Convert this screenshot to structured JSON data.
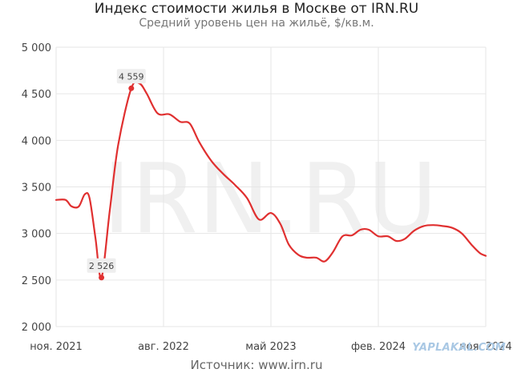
{
  "title": "Индекс стоимости жилья в Москве от IRN.RU",
  "subtitle": "Средний уровень цен на жильё, $/кв.м.",
  "source": "Источник: www.irn.ru",
  "watermark": "IRN.RU",
  "credit": "YAPLAKAL.COM",
  "colors": {
    "line": "#e03030",
    "grid": "#e6e6e6",
    "label_bg": "#eeeeee"
  },
  "chart_data": {
    "type": "line",
    "xlabel": "",
    "ylabel": "",
    "ylim": [
      2000,
      5000
    ],
    "yticks": [
      2000,
      2500,
      3000,
      3500,
      4000,
      4500,
      5000
    ],
    "ytick_labels": [
      "2 000",
      "2 500",
      "3 000",
      "3 500",
      "4 000",
      "4 500",
      "5 000"
    ],
    "xticks": [
      {
        "t": 0,
        "label": "ноя. 2021"
      },
      {
        "t": 9,
        "label": "авг. 2022"
      },
      {
        "t": 18,
        "label": "май 2023"
      },
      {
        "t": 27,
        "label": "фев. 2024"
      },
      {
        "t": 36,
        "label": "ноя. 2024"
      }
    ],
    "grid": true,
    "series": [
      {
        "points": [
          [
            0.0,
            3360
          ],
          [
            0.8,
            3360
          ],
          [
            1.3,
            3290
          ],
          [
            1.9,
            3290
          ],
          [
            2.4,
            3420
          ],
          [
            2.8,
            3380
          ],
          [
            3.3,
            2950
          ],
          [
            3.8,
            2526
          ],
          [
            4.5,
            3250
          ],
          [
            5.2,
            3950
          ],
          [
            6.3,
            4559
          ],
          [
            7.0,
            4610
          ],
          [
            7.6,
            4500
          ],
          [
            8.5,
            4290
          ],
          [
            9.5,
            4280
          ],
          [
            10.4,
            4200
          ],
          [
            11.2,
            4180
          ],
          [
            12.0,
            3980
          ],
          [
            13.0,
            3780
          ],
          [
            14.0,
            3640
          ],
          [
            15.0,
            3520
          ],
          [
            16.0,
            3380
          ],
          [
            17.0,
            3150
          ],
          [
            18.0,
            3220
          ],
          [
            18.8,
            3100
          ],
          [
            19.5,
            2880
          ],
          [
            20.3,
            2770
          ],
          [
            21.0,
            2740
          ],
          [
            21.8,
            2740
          ],
          [
            22.5,
            2700
          ],
          [
            23.2,
            2800
          ],
          [
            24.0,
            2970
          ],
          [
            24.8,
            2980
          ],
          [
            25.5,
            3040
          ],
          [
            26.2,
            3040
          ],
          [
            27.0,
            2970
          ],
          [
            27.8,
            2970
          ],
          [
            28.5,
            2920
          ],
          [
            29.2,
            2940
          ],
          [
            30.0,
            3030
          ],
          [
            30.8,
            3080
          ],
          [
            31.6,
            3090
          ],
          [
            32.4,
            3080
          ],
          [
            33.2,
            3060
          ],
          [
            34.0,
            3000
          ],
          [
            34.8,
            2880
          ],
          [
            35.5,
            2790
          ],
          [
            36.0,
            2760
          ]
        ]
      }
    ],
    "data_labels": [
      {
        "t": 6.3,
        "value": 4559,
        "label": "4 559",
        "position": "above"
      },
      {
        "t": 3.8,
        "value": 2526,
        "label": "2 526",
        "position": "above"
      }
    ]
  }
}
